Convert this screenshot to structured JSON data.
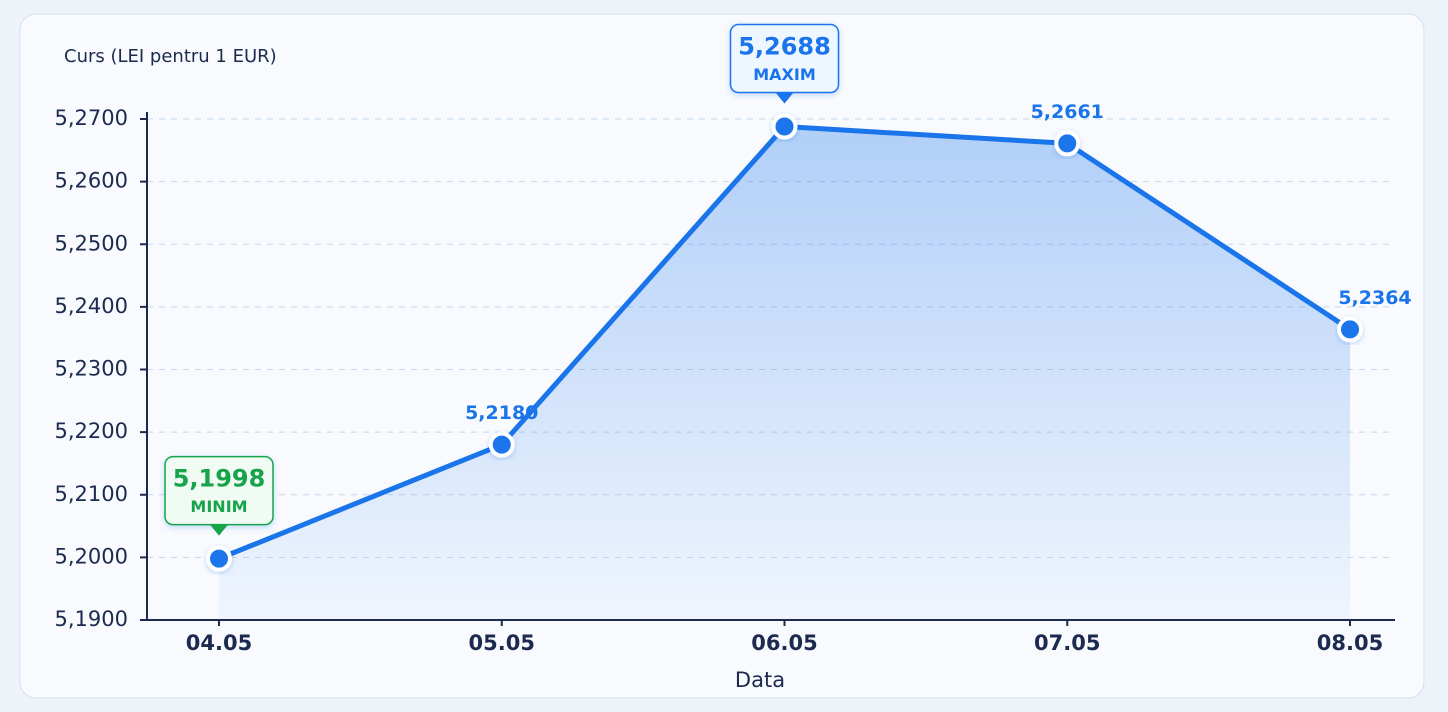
{
  "chart_data": {
    "type": "line",
    "y_axis_label": "Curs (LEI pentru 1 EUR)",
    "x_axis_label": "Data",
    "categories": [
      "04.05",
      "05.05",
      "06.05",
      "07.05",
      "08.05"
    ],
    "values": [
      5.1998,
      5.218,
      5.2688,
      5.2661,
      5.2364
    ],
    "value_labels": [
      "5,1998",
      "5,2180",
      "5,2688",
      "5,2661",
      "5,2364"
    ],
    "min_label": "MINIM",
    "max_label": "MAXIM",
    "color": "#1a74ea",
    "min_color": "#17a34a",
    "ylim": [
      5.19,
      5.27
    ],
    "yticks": [
      {
        "value": 5.19,
        "label": "5,1900"
      },
      {
        "value": 5.2,
        "label": "5,2000"
      },
      {
        "value": 5.21,
        "label": "5,2100"
      },
      {
        "value": 5.22,
        "label": "5,2200"
      },
      {
        "value": 5.23,
        "label": "5,2300"
      },
      {
        "value": 5.24,
        "label": "5,2400"
      },
      {
        "value": 5.25,
        "label": "5,2500"
      },
      {
        "value": 5.26,
        "label": "5,2600"
      },
      {
        "value": 5.27,
        "label": "5,2700"
      }
    ],
    "grid": true
  }
}
